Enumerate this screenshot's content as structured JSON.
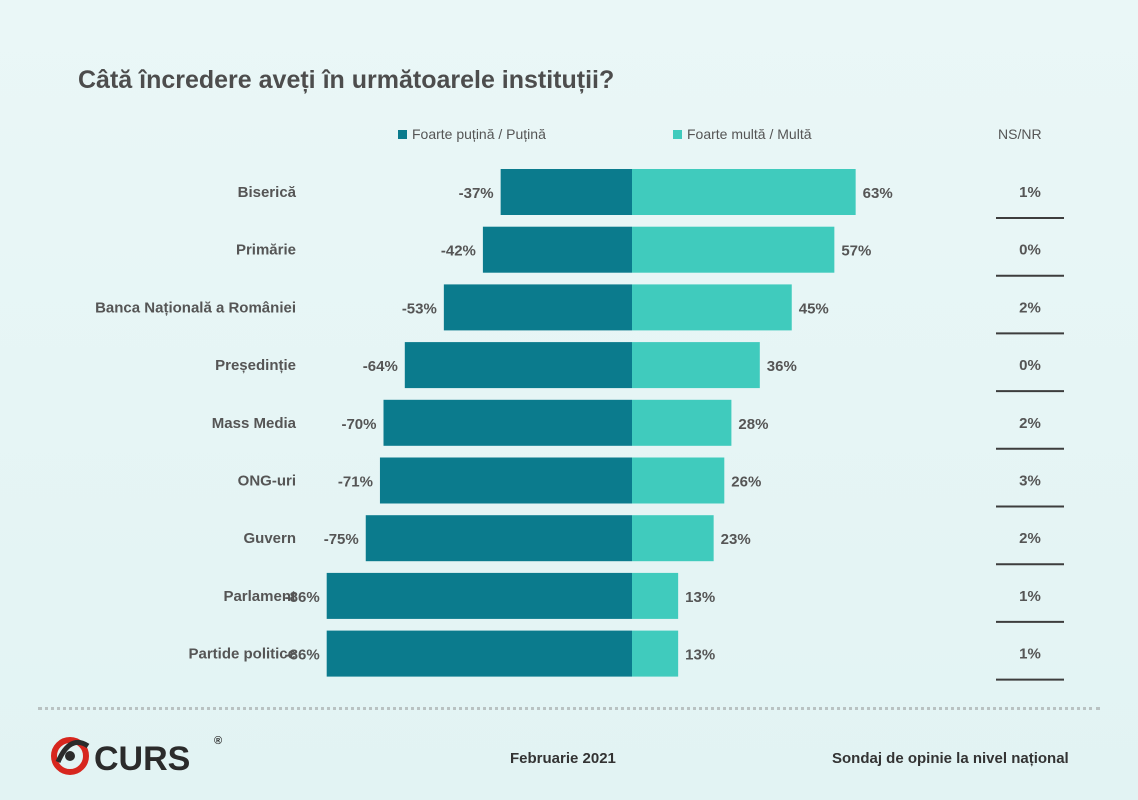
{
  "chart_data": {
    "type": "bar",
    "orientation": "horizontal-diverging",
    "title": "Câtă încredere aveți în următoarele instituții?",
    "categories": [
      "Biserică",
      "Primărie",
      "Banca Națională a României",
      "Președinție",
      "Mass Media",
      "ONG-uri",
      "Guvern",
      "Parlament",
      "Partide politice"
    ],
    "series": [
      {
        "name": "Foarte puțină / Puțină",
        "values": [
          -37,
          -42,
          -53,
          -64,
          -70,
          -71,
          -75,
          -86,
          -86
        ],
        "labels": [
          "-37%",
          "-42%",
          "-53%",
          "-64%",
          "-70%",
          "-71%",
          "-75%",
          "-86%",
          "-86%"
        ],
        "color": "#0b7b8d"
      },
      {
        "name": "Foarte multă / Multă",
        "values": [
          63,
          57,
          45,
          36,
          28,
          26,
          23,
          13,
          13
        ],
        "labels": [
          "63%",
          "57%",
          "45%",
          "36%",
          "28%",
          "26%",
          "23%",
          "13%",
          "13%"
        ],
        "color": "#40cbbd"
      }
    ],
    "ns_nr": {
      "header": "NS/NR",
      "values": [
        1,
        0,
        2,
        0,
        2,
        3,
        2,
        1,
        1
      ],
      "labels": [
        "1%",
        "0%",
        "2%",
        "0%",
        "2%",
        "3%",
        "2%",
        "1%",
        "1%"
      ]
    },
    "xlim": [
      -100,
      100
    ]
  },
  "footer": {
    "logo_text": "CURS",
    "logo_mark": "®",
    "date": "Februarie 2021",
    "note": "Sondaj de opinie la nivel național"
  },
  "colors": {
    "negative": "#0b7b8d",
    "positive": "#40cbbd",
    "logo_red": "#d7261e",
    "logo_dark": "#2b2b2b"
  }
}
